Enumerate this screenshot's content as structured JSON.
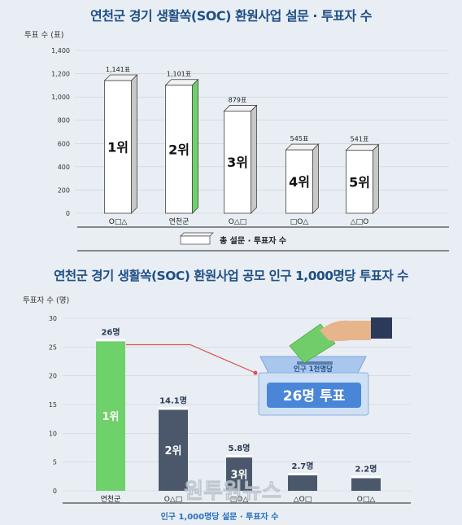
{
  "chart_data": [
    {
      "type": "bar",
      "title": "연천군 경기 생활쏙(SOC) 환원사업 설문 · 투표자 수",
      "ylabel": "투표 수",
      "yunit": "(표)",
      "ylim": [
        0,
        1400
      ],
      "yticks": [
        "0",
        "200",
        "400",
        "600",
        "800",
        "1,000",
        "1,200",
        "1,400"
      ],
      "categories": [
        "O□△",
        "연천군",
        "O△□",
        "□O△",
        "△□O"
      ],
      "values": [
        1141,
        1101,
        879,
        545,
        541
      ],
      "value_labels": [
        "1,141표",
        "1,101표",
        "879표",
        "545표",
        "541표"
      ],
      "ranks": [
        "1위",
        "2위",
        "3위",
        "4위",
        "5위"
      ],
      "highlight_index": 1,
      "legend": "총 설문 · 투표자 수",
      "grid": true
    },
    {
      "type": "bar",
      "title": "연천군 경기 생활쏙(SOC) 환원사업 공모 인구 1,000명당 투표자 수",
      "ylabel": "투표자 수",
      "yunit": "(명)",
      "ylim": [
        0,
        30
      ],
      "yticks": [
        "0",
        "5",
        "10",
        "15",
        "20",
        "25",
        "30"
      ],
      "categories": [
        "연천군",
        "O△□",
        "□O△",
        "△O□",
        "O□△"
      ],
      "values": [
        26,
        14.1,
        5.8,
        2.7,
        2.2
      ],
      "value_labels": [
        "26명",
        "14.1명",
        "5.8명",
        "2.7명",
        "2.2명"
      ],
      "ranks": [
        "1위",
        "2위",
        "3위",
        "",
        ""
      ],
      "highlight_index": 0,
      "legend": "인구 1,000명당 설문 · 투표자 수",
      "callout_top": "인구 1천명당",
      "callout_main": "26명 투표",
      "grid": true
    }
  ],
  "watermark": "원투원뉴스",
  "colors": {
    "title": "#1f4e86",
    "highlight": "#6fd16a",
    "bar_dark": "#4b586c",
    "bar_white": "#ffffff",
    "connector": "#d9534f",
    "ballot_box": "#cfe0f5"
  }
}
